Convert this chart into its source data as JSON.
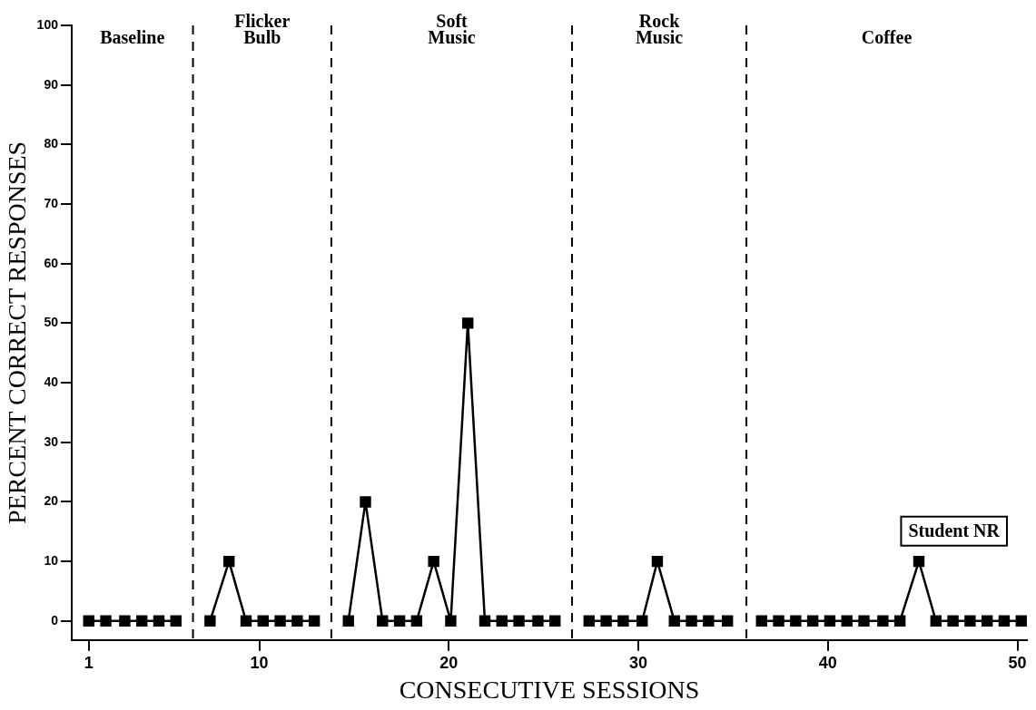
{
  "chart_data": {
    "type": "line",
    "xlabel": "CONSECUTIVE SESSIONS",
    "ylabel": "PERCENT CORRECT RESPONSES",
    "xlim": [
      0.1,
      50.5
    ],
    "xticks": [
      1,
      10,
      20,
      30,
      40,
      50
    ],
    "ylim": [
      -3.2,
      100
    ],
    "yticks": [
      0,
      10,
      20,
      30,
      40,
      50,
      60,
      70,
      80,
      90,
      100
    ],
    "grid": false,
    "legend": false,
    "marker": "square",
    "line_style": "solid",
    "series": [
      {
        "color": "#000000",
        "x": [
          1.0,
          1.9,
          2.9,
          3.8,
          4.7,
          5.6
        ],
        "values": [
          0,
          0,
          0,
          0,
          0,
          0
        ]
      },
      {
        "color": "#000000",
        "x": [
          7.4,
          8.4,
          9.3,
          10.2,
          11.1,
          12.0,
          12.9
        ],
        "values": [
          0,
          10,
          0,
          0,
          0,
          0,
          0
        ]
      },
      {
        "color": "#000000",
        "x": [
          14.7,
          15.6,
          16.5,
          17.4,
          18.3,
          19.2,
          20.1,
          21.0,
          21.9,
          22.8,
          23.7,
          24.7,
          25.6
        ],
        "values": [
          0,
          20,
          0,
          0,
          0,
          10,
          0,
          50,
          0,
          0,
          0,
          0,
          0
        ]
      },
      {
        "color": "#000000",
        "x": [
          27.4,
          28.3,
          29.2,
          30.2,
          31.0,
          31.9,
          32.8,
          33.7,
          34.7
        ],
        "values": [
          0,
          0,
          0,
          0,
          10,
          0,
          0,
          0,
          0
        ]
      },
      {
        "color": "#000000",
        "x": [
          36.5,
          37.4,
          38.3,
          39.2,
          40.1,
          41.0,
          41.9,
          42.9,
          43.8,
          44.8,
          45.7,
          46.6,
          47.5,
          48.4,
          49.3,
          50.2
        ],
        "values": [
          0,
          0,
          0,
          0,
          0,
          0,
          0,
          0,
          0,
          10,
          0,
          0,
          0,
          0,
          0,
          0
        ]
      }
    ],
    "ref_lines": [
      {
        "axis": "x",
        "value": 6.5,
        "line_style": "dashed"
      },
      {
        "axis": "x",
        "value": 13.8,
        "line_style": "dashed"
      },
      {
        "axis": "x",
        "value": 26.5,
        "line_style": "dashed"
      },
      {
        "axis": "x",
        "value": 35.7,
        "line_style": "dashed"
      }
    ],
    "annotations": [
      "Baseline",
      "Flicker Bulb",
      "Soft Music",
      "Rock Music",
      "Coffee",
      "Student NR"
    ]
  }
}
